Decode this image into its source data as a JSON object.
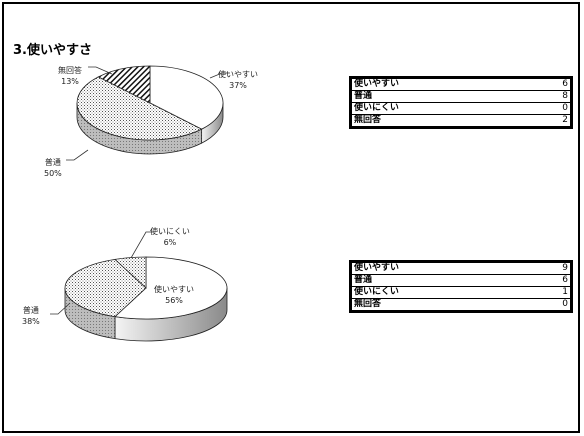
{
  "title": "3.使いやすさ",
  "colors": {
    "slice_a": "#ffffff",
    "slice_b": "#e6e6e6",
    "slice_c": "#bdbdbd",
    "slice_d": "#cfcfcf",
    "edge": "#000000"
  },
  "chart_data": [
    {
      "type": "pie",
      "categories": [
        "使いやすい",
        "普通",
        "使いにくい",
        "無回答"
      ],
      "values": [
        6,
        8,
        0,
        2
      ],
      "labels": [
        {
          "name": "使いやすい",
          "pct": "37%"
        },
        {
          "name": "普通",
          "pct": "50%"
        },
        {
          "name": "無回答",
          "pct": "13%"
        }
      ],
      "table": [
        {
          "name": "使いやすい",
          "value": "6"
        },
        {
          "name": "普通",
          "value": "8"
        },
        {
          "name": "使いにくい",
          "value": "0"
        },
        {
          "name": "無回答",
          "value": "2"
        }
      ]
    },
    {
      "type": "pie",
      "categories": [
        "使いやすい",
        "普通",
        "使いにくい",
        "無回答"
      ],
      "values": [
        9,
        6,
        1,
        0
      ],
      "labels": [
        {
          "name": "使いにくい",
          "pct": "6%"
        },
        {
          "name": "使いやすい",
          "pct": "56%"
        },
        {
          "name": "普通",
          "pct": "38%"
        }
      ],
      "table": [
        {
          "name": "使いやすい",
          "value": "9"
        },
        {
          "name": "普通",
          "value": "6"
        },
        {
          "name": "使いにくい",
          "value": "1"
        },
        {
          "name": "無回答",
          "value": "0"
        }
      ]
    }
  ]
}
